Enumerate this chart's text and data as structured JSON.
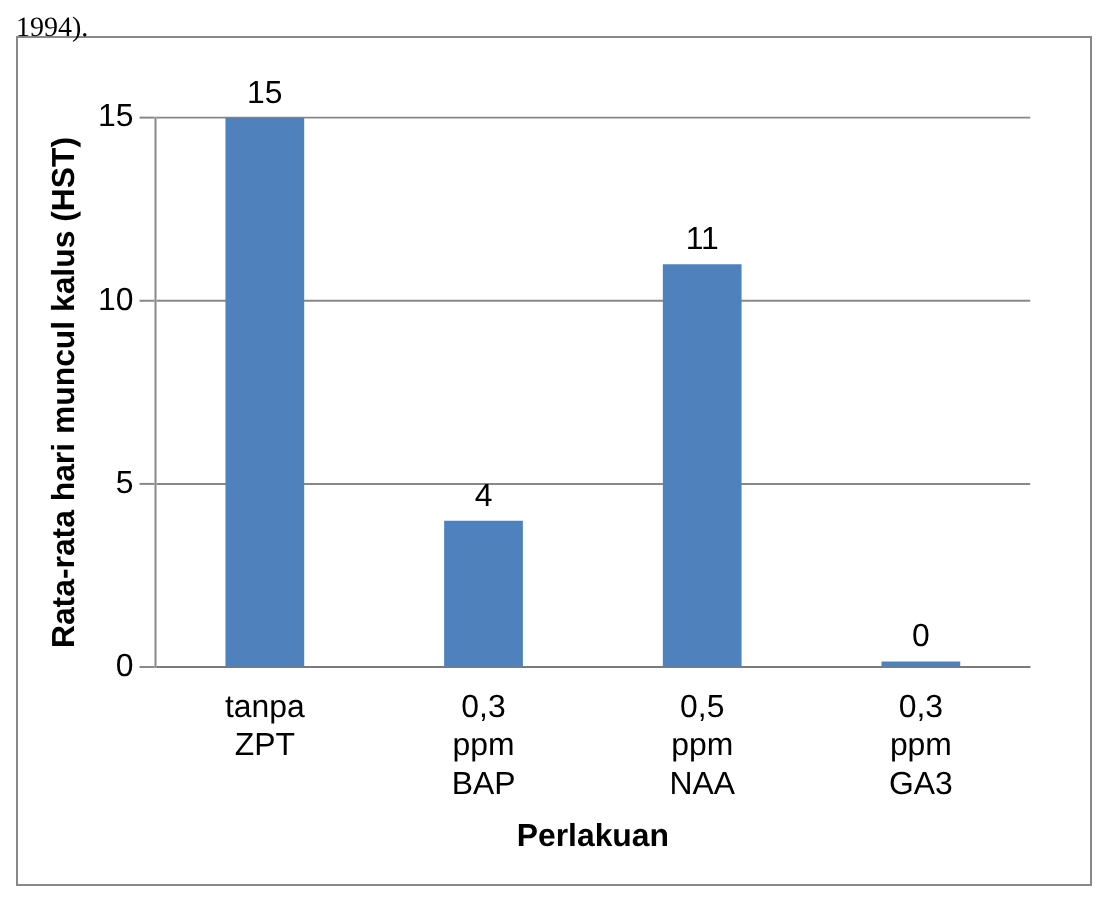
{
  "chart_data": {
    "type": "bar",
    "xlabel": "Perlakuan",
    "ylabel": "Rata-rata hari muncul kalus (HST)",
    "categories": [
      "tanpa ZPT",
      "0,3 ppm BAP",
      "0,5 ppm NAA",
      "0,3 ppm GA3"
    ],
    "values": [
      15,
      4,
      11,
      0
    ],
    "color": "#4f81bd",
    "ylim": [
      0,
      15
    ],
    "yticks": [
      0,
      5,
      10,
      15
    ],
    "grid": "y",
    "data_labels": true,
    "legend": false,
    "annotations": [
      "1994)."
    ]
  }
}
